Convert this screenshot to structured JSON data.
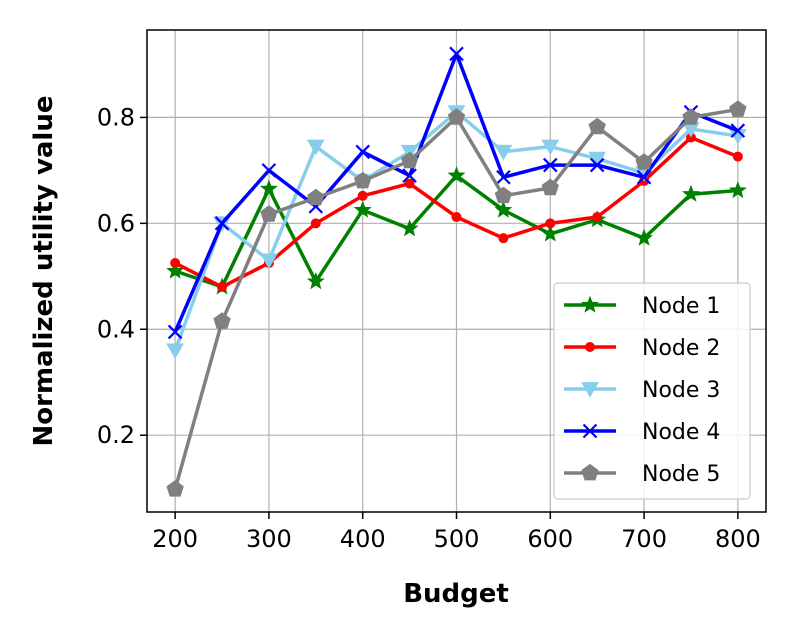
{
  "chart_data": {
    "type": "line",
    "title": "",
    "xlabel": "Budget",
    "ylabel": "Normalized utility value",
    "x": [
      200,
      250,
      300,
      350,
      400,
      450,
      500,
      550,
      600,
      650,
      700,
      750,
      800
    ],
    "xlim": [
      170,
      830
    ],
    "ylim": [
      0.055,
      0.965
    ],
    "xticks": [
      200,
      300,
      400,
      500,
      600,
      700,
      800
    ],
    "yticks": [
      0.2,
      0.4,
      0.6,
      0.8
    ],
    "ytick_labels": [
      "0.2",
      "0.4",
      "0.6",
      "0.8"
    ],
    "xtick_labels": [
      "200",
      "300",
      "400",
      "500",
      "600",
      "700",
      "800"
    ],
    "grid": true,
    "legend_position": "bottom-right",
    "series": [
      {
        "name": "Node 1",
        "color": "#008000",
        "marker": "star",
        "values": [
          0.51,
          0.48,
          0.665,
          0.49,
          0.625,
          0.59,
          0.69,
          0.625,
          0.58,
          0.607,
          0.572,
          0.655,
          0.662
        ]
      },
      {
        "name": "Node 2",
        "color": "#ff0000",
        "marker": "circle",
        "values": [
          0.525,
          0.48,
          0.525,
          0.6,
          0.652,
          0.675,
          0.612,
          0.572,
          0.6,
          0.612,
          0.68,
          0.762,
          0.726
        ]
      },
      {
        "name": "Node 3",
        "color": "#87ceeb",
        "marker": "triangle-down",
        "values": [
          0.36,
          0.6,
          0.53,
          0.745,
          0.68,
          0.735,
          0.81,
          0.735,
          0.745,
          0.722,
          0.695,
          0.778,
          0.765
        ]
      },
      {
        "name": "Node 4",
        "color": "#0000ff",
        "marker": "x",
        "values": [
          0.395,
          0.6,
          0.7,
          0.632,
          0.735,
          0.69,
          0.92,
          0.687,
          0.71,
          0.71,
          0.687,
          0.81,
          0.775
        ]
      },
      {
        "name": "Node 5",
        "color": "#808080",
        "marker": "pentagon",
        "values": [
          0.098,
          0.415,
          0.617,
          0.648,
          0.68,
          0.718,
          0.8,
          0.652,
          0.667,
          0.782,
          0.715,
          0.8,
          0.815
        ]
      }
    ]
  }
}
